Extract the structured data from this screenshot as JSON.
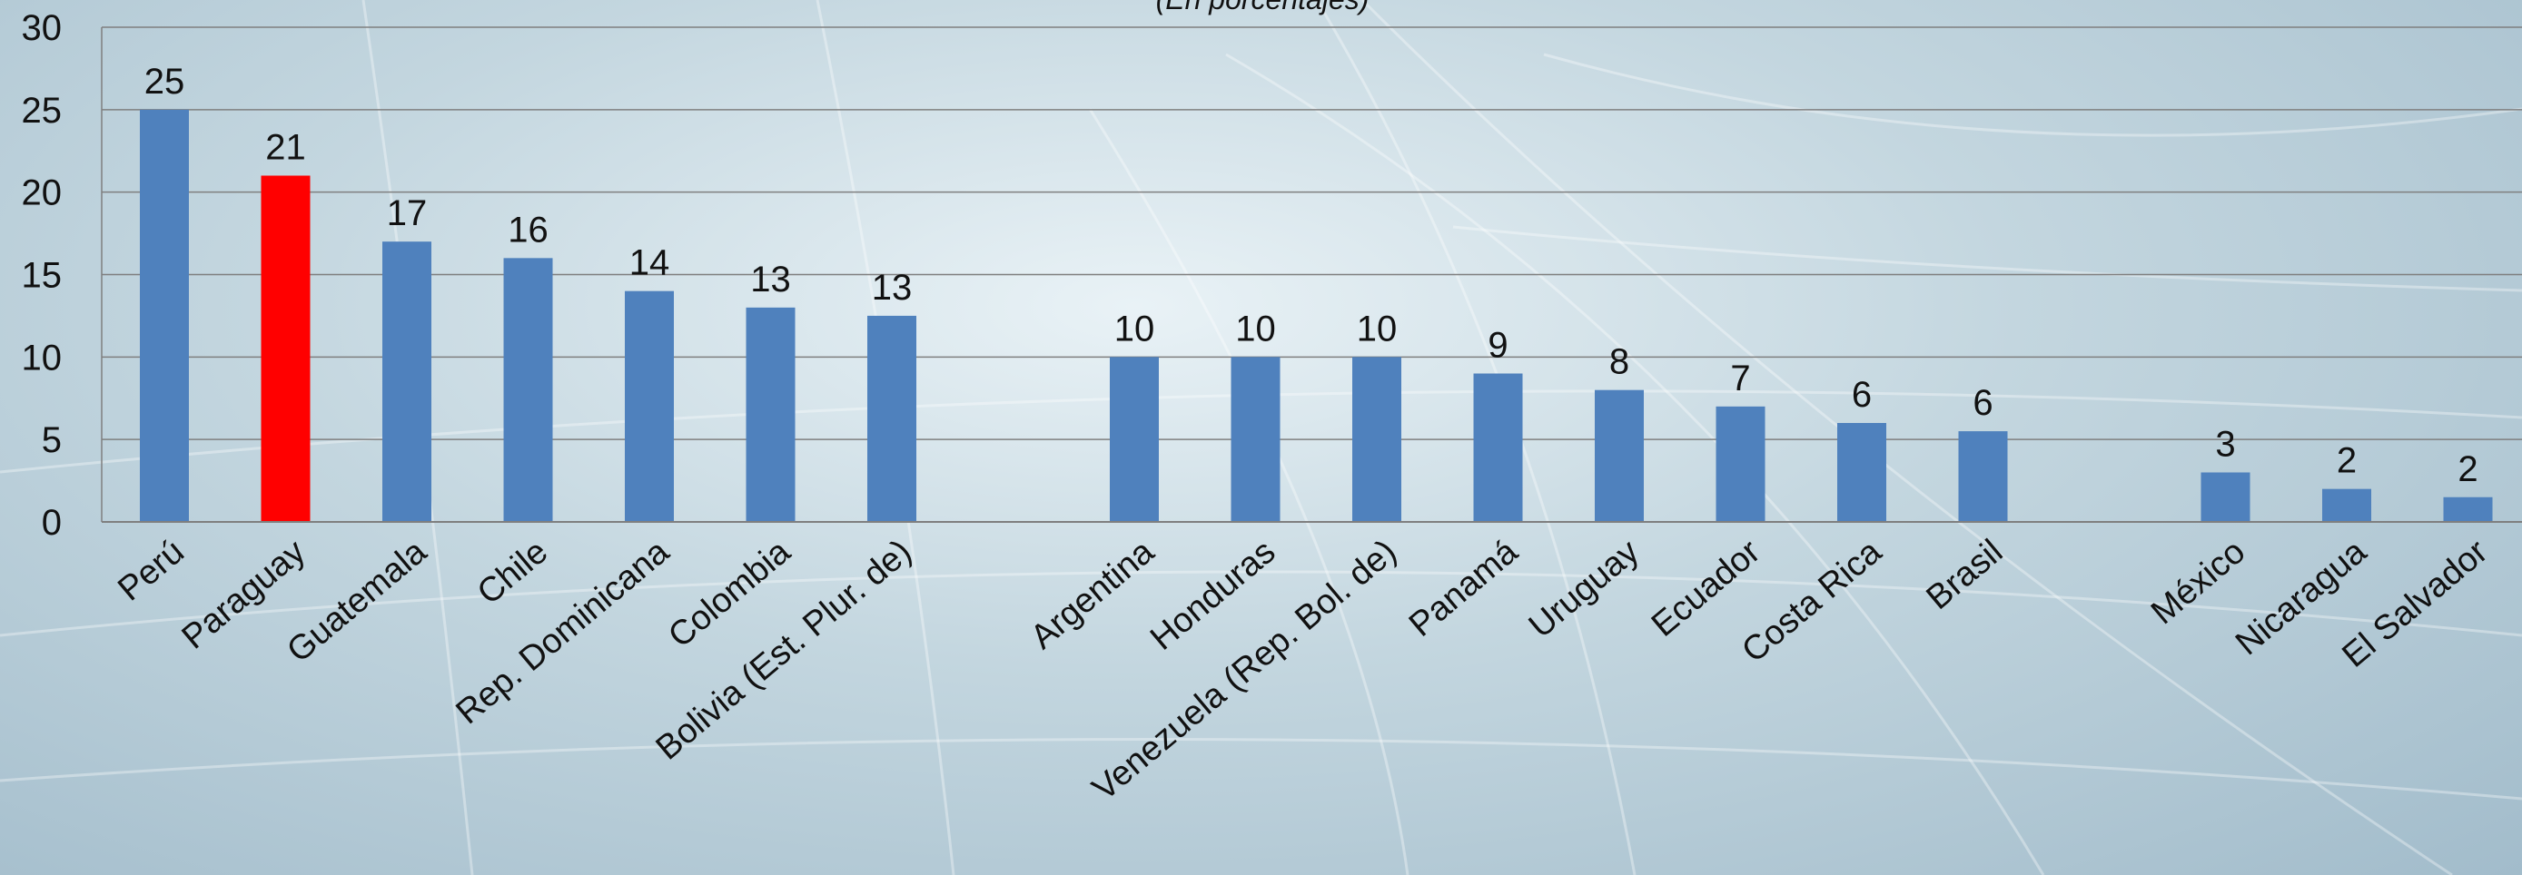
{
  "chart_data": {
    "type": "bar",
    "subtitle": "(En porcentajes)",
    "ylim": [
      0,
      30
    ],
    "yticks": [
      0,
      5,
      10,
      15,
      20,
      25,
      30
    ],
    "grid": true,
    "colors": {
      "default": "#4f81bd",
      "highlight": "#ff0000"
    },
    "groups": [
      [
        {
          "label": "Perú",
          "value": 25,
          "text": "25"
        },
        {
          "label": "Paraguay",
          "value": 21,
          "text": "21",
          "highlight": true
        },
        {
          "label": "Guatemala",
          "value": 17,
          "text": "17"
        },
        {
          "label": "Chile",
          "value": 16,
          "text": "16"
        },
        {
          "label": "Rep. Dominicana",
          "value": 14,
          "text": "14"
        },
        {
          "label": "Colombia",
          "value": 13,
          "text": "13"
        },
        {
          "label": "Bolivia (Est. Plur. de)",
          "value": 12.5,
          "text": "13"
        }
      ],
      [
        {
          "label": "Argentina",
          "value": 10,
          "text": "10"
        },
        {
          "label": "Honduras",
          "value": 10,
          "text": "10"
        },
        {
          "label": "Venezuela (Rep. Bol. de)",
          "value": 10,
          "text": "10"
        },
        {
          "label": "Panamá",
          "value": 9,
          "text": "9"
        },
        {
          "label": "Uruguay",
          "value": 8,
          "text": "8"
        },
        {
          "label": "Ecuador",
          "value": 7,
          "text": "7"
        },
        {
          "label": "Costa Rica",
          "value": 6,
          "text": "6"
        },
        {
          "label": "Brasil",
          "value": 5.5,
          "text": "6"
        }
      ],
      [
        {
          "label": "México",
          "value": 3,
          "text": "3"
        },
        {
          "label": "Nicaragua",
          "value": 2,
          "text": "2"
        },
        {
          "label": "El Salvador",
          "value": 1.5,
          "text": "2"
        }
      ]
    ]
  }
}
